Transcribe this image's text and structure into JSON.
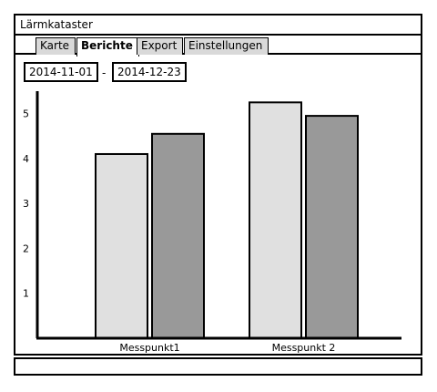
{
  "window": {
    "title": "Lärmkataster",
    "tabs": [
      {
        "label": "Karte",
        "active": false
      },
      {
        "label": "Berichte",
        "active": true
      },
      {
        "label": "Export",
        "active": false
      },
      {
        "label": "Einstellungen",
        "active": false
      }
    ]
  },
  "filters": {
    "date_from": "2014-11-01",
    "separator": "-",
    "date_to": "2014-12-23"
  },
  "status_bar": {
    "text": ""
  },
  "chart_data": {
    "type": "bar",
    "categories": [
      "Messpunkt1",
      "Messpunkt 2"
    ],
    "series": [
      {
        "values": [
          4.1,
          5.25
        ],
        "color": "#e0e0e0"
      },
      {
        "values": [
          4.55,
          4.95
        ],
        "color": "#999999"
      }
    ],
    "yticks": [
      1,
      2,
      3,
      4,
      5
    ],
    "ylim": [
      0,
      5.5
    ],
    "title": "",
    "xlabel": "",
    "ylabel": "",
    "grid": false,
    "legend": false
  }
}
